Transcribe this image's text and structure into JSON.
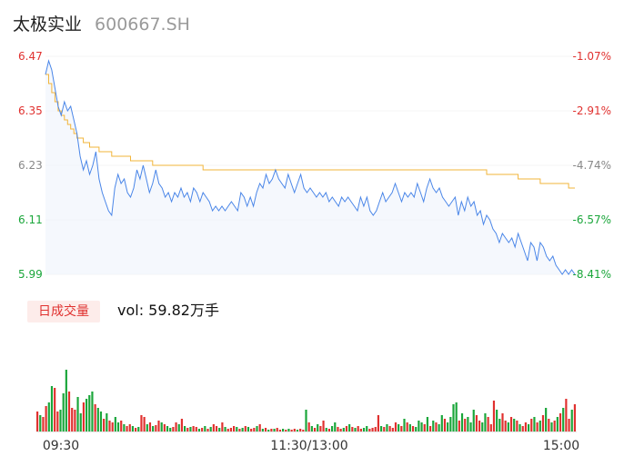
{
  "header": {
    "name": "太极实业",
    "code": "600667.SH"
  },
  "colors": {
    "up": "#e0312f",
    "down": "#1aa63a",
    "price_line": "#4a86e8",
    "avg_line": "#f2b53a",
    "neutral": "#888888",
    "area_fill": "#eef3fc"
  },
  "volume": {
    "badge": "日成交量",
    "text": "vol: 59.82万手"
  },
  "chart_data": {
    "type": "line",
    "y_left_ticks": [
      "6.47",
      "6.35",
      "6.23",
      "6.11",
      "5.99"
    ],
    "y_right_ticks": [
      "-1.07%",
      "-2.91%",
      "-4.74%",
      "-6.57%",
      "-8.41%"
    ],
    "x_ticks": [
      "09:30",
      "11:30/13:00",
      "15:00"
    ],
    "ylim": [
      5.99,
      6.47
    ],
    "series": [
      {
        "values": [
          6.43,
          6.46,
          6.44,
          6.4,
          6.36,
          6.34,
          6.37,
          6.35,
          6.36,
          6.33,
          6.3,
          6.25,
          6.22,
          6.24,
          6.21,
          6.23,
          6.26,
          6.2,
          6.17,
          6.15,
          6.13,
          6.12,
          6.18,
          6.21,
          6.19,
          6.2,
          6.17,
          6.16,
          6.18,
          6.22,
          6.2,
          6.23,
          6.2,
          6.17,
          6.19,
          6.22,
          6.19,
          6.18,
          6.16,
          6.17,
          6.15,
          6.17,
          6.16,
          6.18,
          6.16,
          6.17,
          6.15,
          6.18,
          6.17,
          6.15,
          6.17,
          6.16,
          6.15,
          6.13,
          6.14,
          6.13,
          6.14,
          6.13,
          6.14,
          6.15,
          6.14,
          6.13,
          6.17,
          6.16,
          6.14,
          6.16,
          6.14,
          6.17,
          6.19,
          6.18,
          6.21,
          6.19,
          6.2,
          6.22,
          6.2,
          6.19,
          6.18,
          6.21,
          6.19,
          6.17,
          6.19,
          6.21,
          6.18,
          6.17,
          6.18,
          6.17,
          6.16,
          6.17,
          6.16,
          6.17,
          6.15,
          6.16,
          6.15,
          6.14,
          6.16,
          6.15,
          6.16,
          6.15,
          6.14,
          6.13,
          6.16,
          6.14,
          6.16,
          6.13,
          6.12,
          6.13,
          6.15,
          6.17,
          6.15,
          6.16,
          6.17,
          6.19,
          6.17,
          6.15,
          6.17,
          6.16,
          6.17,
          6.16,
          6.19,
          6.17,
          6.15,
          6.18,
          6.2,
          6.18,
          6.17,
          6.18,
          6.16,
          6.15,
          6.14,
          6.15,
          6.16,
          6.12,
          6.15,
          6.13,
          6.16,
          6.14,
          6.15,
          6.12,
          6.13,
          6.1,
          6.12,
          6.11,
          6.09,
          6.08,
          6.06,
          6.08,
          6.07,
          6.06,
          6.07,
          6.05,
          6.08,
          6.06,
          6.04,
          6.02,
          6.06,
          6.05,
          6.02,
          6.06,
          6.05,
          6.03,
          6.02,
          6.03,
          6.01,
          6.0,
          5.99,
          6.0,
          5.99,
          6.0,
          5.99
        ]
      },
      {
        "values": [
          6.43,
          6.41,
          6.39,
          6.37,
          6.35,
          6.34,
          6.33,
          6.32,
          6.31,
          6.3,
          6.29,
          6.29,
          6.28,
          6.28,
          6.27,
          6.27,
          6.27,
          6.26,
          6.26,
          6.26,
          6.26,
          6.25,
          6.25,
          6.25,
          6.25,
          6.25,
          6.25,
          6.24,
          6.24,
          6.24,
          6.24,
          6.24,
          6.24,
          6.24,
          6.23,
          6.23,
          6.23,
          6.23,
          6.23,
          6.23,
          6.23,
          6.23,
          6.23,
          6.23,
          6.23,
          6.23,
          6.23,
          6.23,
          6.23,
          6.23,
          6.22,
          6.22,
          6.22,
          6.22,
          6.22,
          6.22,
          6.22,
          6.22,
          6.22,
          6.22,
          6.22,
          6.22,
          6.22,
          6.22,
          6.22,
          6.22,
          6.22,
          6.22,
          6.22,
          6.22,
          6.22,
          6.22,
          6.22,
          6.22,
          6.22,
          6.22,
          6.22,
          6.22,
          6.22,
          6.22,
          6.22,
          6.22,
          6.22,
          6.22,
          6.22,
          6.22,
          6.22,
          6.22,
          6.22,
          6.22,
          6.22,
          6.22,
          6.22,
          6.22,
          6.22,
          6.22,
          6.22,
          6.22,
          6.22,
          6.22,
          6.22,
          6.22,
          6.22,
          6.22,
          6.22,
          6.22,
          6.22,
          6.22,
          6.22,
          6.22,
          6.22,
          6.22,
          6.22,
          6.22,
          6.22,
          6.22,
          6.22,
          6.22,
          6.22,
          6.22,
          6.22,
          6.22,
          6.22,
          6.22,
          6.22,
          6.22,
          6.22,
          6.22,
          6.22,
          6.22,
          6.22,
          6.22,
          6.22,
          6.22,
          6.22,
          6.22,
          6.22,
          6.22,
          6.22,
          6.22,
          6.21,
          6.21,
          6.21,
          6.21,
          6.21,
          6.21,
          6.21,
          6.21,
          6.21,
          6.21,
          6.2,
          6.2,
          6.2,
          6.2,
          6.2,
          6.2,
          6.2,
          6.19,
          6.19,
          6.19,
          6.19,
          6.19,
          6.19,
          6.19,
          6.19,
          6.19,
          6.18,
          6.18,
          6.18
        ]
      }
    ],
    "volume_bars": [
      {
        "v": 0.22,
        "c": "up"
      },
      {
        "v": 0.18,
        "c": "down"
      },
      {
        "v": 0.16,
        "c": "up"
      },
      {
        "v": 0.28,
        "c": "up"
      },
      {
        "v": 0.32,
        "c": "down"
      },
      {
        "v": 0.5,
        "c": "down"
      },
      {
        "v": 0.48,
        "c": "up"
      },
      {
        "v": 0.22,
        "c": "up"
      },
      {
        "v": 0.24,
        "c": "down"
      },
      {
        "v": 0.42,
        "c": "down"
      },
      {
        "v": 0.68,
        "c": "down"
      },
      {
        "v": 0.44,
        "c": "up"
      },
      {
        "v": 0.26,
        "c": "up"
      },
      {
        "v": 0.24,
        "c": "up"
      },
      {
        "v": 0.38,
        "c": "down"
      },
      {
        "v": 0.2,
        "c": "down"
      },
      {
        "v": 0.32,
        "c": "up"
      },
      {
        "v": 0.36,
        "c": "down"
      },
      {
        "v": 0.4,
        "c": "down"
      },
      {
        "v": 0.44,
        "c": "down"
      },
      {
        "v": 0.3,
        "c": "up"
      },
      {
        "v": 0.26,
        "c": "down"
      },
      {
        "v": 0.22,
        "c": "down"
      },
      {
        "v": 0.14,
        "c": "up"
      },
      {
        "v": 0.2,
        "c": "down"
      },
      {
        "v": 0.12,
        "c": "up"
      },
      {
        "v": 0.1,
        "c": "up"
      },
      {
        "v": 0.16,
        "c": "down"
      },
      {
        "v": 0.1,
        "c": "down"
      },
      {
        "v": 0.12,
        "c": "up"
      },
      {
        "v": 0.08,
        "c": "down"
      },
      {
        "v": 0.06,
        "c": "up"
      },
      {
        "v": 0.08,
        "c": "up"
      },
      {
        "v": 0.06,
        "c": "down"
      },
      {
        "v": 0.04,
        "c": "up"
      },
      {
        "v": 0.05,
        "c": "down"
      },
      {
        "v": 0.18,
        "c": "up"
      },
      {
        "v": 0.16,
        "c": "up"
      },
      {
        "v": 0.08,
        "c": "down"
      },
      {
        "v": 0.1,
        "c": "up"
      },
      {
        "v": 0.06,
        "c": "down"
      },
      {
        "v": 0.07,
        "c": "up"
      },
      {
        "v": 0.12,
        "c": "up"
      },
      {
        "v": 0.1,
        "c": "down"
      },
      {
        "v": 0.08,
        "c": "up"
      },
      {
        "v": 0.06,
        "c": "down"
      },
      {
        "v": 0.04,
        "c": "down"
      },
      {
        "v": 0.05,
        "c": "up"
      },
      {
        "v": 0.1,
        "c": "up"
      },
      {
        "v": 0.08,
        "c": "down"
      },
      {
        "v": 0.14,
        "c": "up"
      },
      {
        "v": 0.06,
        "c": "down"
      },
      {
        "v": 0.04,
        "c": "up"
      },
      {
        "v": 0.05,
        "c": "down"
      },
      {
        "v": 0.06,
        "c": "up"
      },
      {
        "v": 0.05,
        "c": "up"
      },
      {
        "v": 0.03,
        "c": "down"
      },
      {
        "v": 0.04,
        "c": "up"
      },
      {
        "v": 0.06,
        "c": "down"
      },
      {
        "v": 0.03,
        "c": "up"
      },
      {
        "v": 0.05,
        "c": "down"
      },
      {
        "v": 0.08,
        "c": "up"
      },
      {
        "v": 0.06,
        "c": "up"
      },
      {
        "v": 0.04,
        "c": "down"
      },
      {
        "v": 0.1,
        "c": "up"
      },
      {
        "v": 0.05,
        "c": "down"
      },
      {
        "v": 0.03,
        "c": "up"
      },
      {
        "v": 0.04,
        "c": "up"
      },
      {
        "v": 0.06,
        "c": "up"
      },
      {
        "v": 0.05,
        "c": "down"
      },
      {
        "v": 0.03,
        "c": "up"
      },
      {
        "v": 0.04,
        "c": "down"
      },
      {
        "v": 0.06,
        "c": "up"
      },
      {
        "v": 0.05,
        "c": "down"
      },
      {
        "v": 0.03,
        "c": "up"
      },
      {
        "v": 0.04,
        "c": "up"
      },
      {
        "v": 0.06,
        "c": "down"
      },
      {
        "v": 0.08,
        "c": "up"
      },
      {
        "v": 0.03,
        "c": "down"
      },
      {
        "v": 0.04,
        "c": "up"
      },
      {
        "v": 0.02,
        "c": "down"
      },
      {
        "v": 0.03,
        "c": "up"
      },
      {
        "v": 0.03,
        "c": "down"
      },
      {
        "v": 0.04,
        "c": "up"
      },
      {
        "v": 0.02,
        "c": "up"
      },
      {
        "v": 0.03,
        "c": "down"
      },
      {
        "v": 0.02,
        "c": "up"
      },
      {
        "v": 0.03,
        "c": "down"
      },
      {
        "v": 0.02,
        "c": "up"
      },
      {
        "v": 0.03,
        "c": "up"
      },
      {
        "v": 0.02,
        "c": "down"
      },
      {
        "v": 0.03,
        "c": "up"
      },
      {
        "v": 0.02,
        "c": "up"
      },
      {
        "v": 0.24,
        "c": "down"
      },
      {
        "v": 0.1,
        "c": "up"
      },
      {
        "v": 0.06,
        "c": "down"
      },
      {
        "v": 0.04,
        "c": "up"
      },
      {
        "v": 0.08,
        "c": "down"
      },
      {
        "v": 0.06,
        "c": "up"
      },
      {
        "v": 0.12,
        "c": "up"
      },
      {
        "v": 0.04,
        "c": "down"
      },
      {
        "v": 0.03,
        "c": "up"
      },
      {
        "v": 0.06,
        "c": "down"
      },
      {
        "v": 0.1,
        "c": "down"
      },
      {
        "v": 0.05,
        "c": "up"
      },
      {
        "v": 0.03,
        "c": "up"
      },
      {
        "v": 0.04,
        "c": "down"
      },
      {
        "v": 0.06,
        "c": "up"
      },
      {
        "v": 0.08,
        "c": "down"
      },
      {
        "v": 0.05,
        "c": "up"
      },
      {
        "v": 0.04,
        "c": "down"
      },
      {
        "v": 0.06,
        "c": "up"
      },
      {
        "v": 0.03,
        "c": "up"
      },
      {
        "v": 0.04,
        "c": "down"
      },
      {
        "v": 0.06,
        "c": "down"
      },
      {
        "v": 0.03,
        "c": "up"
      },
      {
        "v": 0.04,
        "c": "up"
      },
      {
        "v": 0.05,
        "c": "up"
      },
      {
        "v": 0.18,
        "c": "up"
      },
      {
        "v": 0.06,
        "c": "down"
      },
      {
        "v": 0.05,
        "c": "up"
      },
      {
        "v": 0.08,
        "c": "down"
      },
      {
        "v": 0.06,
        "c": "up"
      },
      {
        "v": 0.04,
        "c": "up"
      },
      {
        "v": 0.1,
        "c": "up"
      },
      {
        "v": 0.08,
        "c": "down"
      },
      {
        "v": 0.06,
        "c": "up"
      },
      {
        "v": 0.14,
        "c": "down"
      },
      {
        "v": 0.1,
        "c": "up"
      },
      {
        "v": 0.08,
        "c": "down"
      },
      {
        "v": 0.06,
        "c": "up"
      },
      {
        "v": 0.05,
        "c": "down"
      },
      {
        "v": 0.12,
        "c": "down"
      },
      {
        "v": 0.1,
        "c": "down"
      },
      {
        "v": 0.08,
        "c": "up"
      },
      {
        "v": 0.16,
        "c": "down"
      },
      {
        "v": 0.06,
        "c": "up"
      },
      {
        "v": 0.12,
        "c": "down"
      },
      {
        "v": 0.1,
        "c": "up"
      },
      {
        "v": 0.08,
        "c": "down"
      },
      {
        "v": 0.18,
        "c": "down"
      },
      {
        "v": 0.14,
        "c": "up"
      },
      {
        "v": 0.1,
        "c": "down"
      },
      {
        "v": 0.16,
        "c": "down"
      },
      {
        "v": 0.3,
        "c": "down"
      },
      {
        "v": 0.32,
        "c": "down"
      },
      {
        "v": 0.12,
        "c": "up"
      },
      {
        "v": 0.2,
        "c": "down"
      },
      {
        "v": 0.14,
        "c": "up"
      },
      {
        "v": 0.16,
        "c": "down"
      },
      {
        "v": 0.1,
        "c": "down"
      },
      {
        "v": 0.24,
        "c": "down"
      },
      {
        "v": 0.18,
        "c": "up"
      },
      {
        "v": 0.12,
        "c": "up"
      },
      {
        "v": 0.1,
        "c": "down"
      },
      {
        "v": 0.2,
        "c": "down"
      },
      {
        "v": 0.16,
        "c": "up"
      },
      {
        "v": 0.08,
        "c": "up"
      },
      {
        "v": 0.34,
        "c": "up"
      },
      {
        "v": 0.24,
        "c": "down"
      },
      {
        "v": 0.14,
        "c": "down"
      },
      {
        "v": 0.2,
        "c": "up"
      },
      {
        "v": 0.12,
        "c": "up"
      },
      {
        "v": 0.1,
        "c": "down"
      },
      {
        "v": 0.16,
        "c": "up"
      },
      {
        "v": 0.14,
        "c": "down"
      },
      {
        "v": 0.12,
        "c": "up"
      },
      {
        "v": 0.08,
        "c": "down"
      },
      {
        "v": 0.06,
        "c": "up"
      },
      {
        "v": 0.1,
        "c": "up"
      },
      {
        "v": 0.08,
        "c": "down"
      },
      {
        "v": 0.14,
        "c": "up"
      },
      {
        "v": 0.16,
        "c": "down"
      },
      {
        "v": 0.1,
        "c": "up"
      },
      {
        "v": 0.12,
        "c": "down"
      },
      {
        "v": 0.18,
        "c": "up"
      },
      {
        "v": 0.26,
        "c": "down"
      },
      {
        "v": 0.14,
        "c": "up"
      },
      {
        "v": 0.1,
        "c": "down"
      },
      {
        "v": 0.12,
        "c": "up"
      },
      {
        "v": 0.16,
        "c": "down"
      },
      {
        "v": 0.2,
        "c": "up"
      },
      {
        "v": 0.26,
        "c": "down"
      },
      {
        "v": 0.36,
        "c": "up"
      },
      {
        "v": 0.14,
        "c": "up"
      },
      {
        "v": 0.24,
        "c": "down"
      },
      {
        "v": 0.3,
        "c": "up"
      }
    ]
  }
}
